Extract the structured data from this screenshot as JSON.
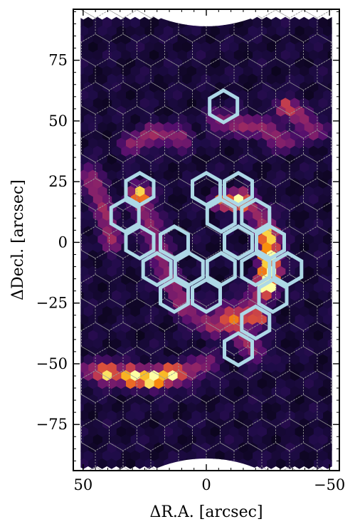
{
  "chart_data": {
    "type": "heatmap",
    "title": "",
    "xlabel": "ΔR.A. [arcsec]",
    "ylabel": "ΔDecl. [arcsec]",
    "xlim": [
      54,
      -54
    ],
    "ylim": [
      -94,
      96
    ],
    "x_direction": "decreasing (east to the left)",
    "xticks": [
      50,
      0,
      -50
    ],
    "xtick_labels": [
      "50",
      "0",
      "−50"
    ],
    "yticks": [
      75,
      50,
      25,
      0,
      -25,
      -50,
      -75
    ],
    "ytick_labels": [
      "75",
      "50",
      "25",
      "0",
      "−25",
      "−50",
      "−75"
    ],
    "grid": "hexagonal fiber-bundle footprint grid (gray dashed)",
    "colormap": "inferno",
    "field_shape": "stadium (rounded rectangle) hexagonal mosaic",
    "field_extent": {
      "x": [
        -51,
        51
      ],
      "y": [
        -89,
        89
      ]
    },
    "emission_features": [
      {
        "kind": "arc",
        "points": [
          [
            27,
            20
          ],
          [
            22,
            5
          ],
          [
            17,
            -12
          ],
          [
            8,
            -28
          ],
          [
            -3,
            -35
          ],
          [
            -15,
            -30
          ],
          [
            -24,
            -15
          ],
          [
            -27,
            -2
          ],
          [
            -22,
            12
          ],
          [
            -14,
            18
          ]
        ]
      },
      {
        "kind": "arc",
        "points": [
          [
            30,
            40
          ],
          [
            22,
            45
          ],
          [
            10,
            43
          ]
        ]
      },
      {
        "kind": "arc",
        "points": [
          [
            -5,
            50
          ],
          [
            -20,
            48
          ],
          [
            -32,
            42
          ]
        ]
      },
      {
        "kind": "arc",
        "points": [
          [
            -20,
            -45
          ],
          [
            -14,
            -38
          ],
          [
            -8,
            -28
          ]
        ]
      },
      {
        "kind": "arc",
        "points": [
          [
            48,
            -53
          ],
          [
            35,
            -54
          ],
          [
            22,
            -56
          ],
          [
            8,
            -54
          ],
          [
            0,
            -50
          ]
        ]
      },
      {
        "kind": "arc",
        "points": [
          [
            48,
            28
          ],
          [
            42,
            15
          ],
          [
            38,
            0
          ]
        ]
      },
      {
        "kind": "arc",
        "points": [
          [
            -38,
            52
          ],
          [
            -44,
            46
          ]
        ]
      }
    ],
    "bright_spots": [
      {
        "x": -25,
        "y": -18,
        "level": 1.0
      },
      {
        "x": -26,
        "y": -12,
        "level": 0.85
      },
      {
        "x": -25,
        "y": -5,
        "level": 0.75
      },
      {
        "x": -25,
        "y": 3,
        "level": 0.7
      },
      {
        "x": -13,
        "y": 17,
        "level": 0.72
      },
      {
        "x": -6,
        "y": 17,
        "level": 0.55
      },
      {
        "x": 22,
        "y": -56,
        "level": 0.95
      },
      {
        "x": 30,
        "y": -55,
        "level": 0.8
      },
      {
        "x": 14,
        "y": -54,
        "level": 0.75
      },
      {
        "x": -32,
        "y": 56,
        "level": 0.55
      },
      {
        "x": 27,
        "y": 20,
        "level": 0.6
      },
      {
        "x": -21,
        "y": -31,
        "level": 0.6
      },
      {
        "x": 40,
        "y": -54,
        "level": 0.6
      }
    ],
    "highlighted_hexagons": [
      {
        "x": -7,
        "y": 56
      },
      {
        "x": 27,
        "y": 22
      },
      {
        "x": 33,
        "y": 11
      },
      {
        "x": 27,
        "y": 0
      },
      {
        "x": 20,
        "y": -11
      },
      {
        "x": 13,
        "y": -22
      },
      {
        "x": 13,
        "y": 0
      },
      {
        "x": 7,
        "y": -11
      },
      {
        "x": 0,
        "y": -22
      },
      {
        "x": 0,
        "y": 22
      },
      {
        "x": -6,
        "y": 11
      },
      {
        "x": -13,
        "y": 22
      },
      {
        "x": -13,
        "y": 0
      },
      {
        "x": -6,
        "y": -11
      },
      {
        "x": -20,
        "y": 11
      },
      {
        "x": -26,
        "y": 0
      },
      {
        "x": -20,
        "y": -11
      },
      {
        "x": -33,
        "y": -11
      },
      {
        "x": -27,
        "y": -22
      },
      {
        "x": -20,
        "y": -33
      },
      {
        "x": -13,
        "y": -44
      }
    ],
    "highlight_color": "#add8e6",
    "grid_color": "#9a9a9a"
  }
}
